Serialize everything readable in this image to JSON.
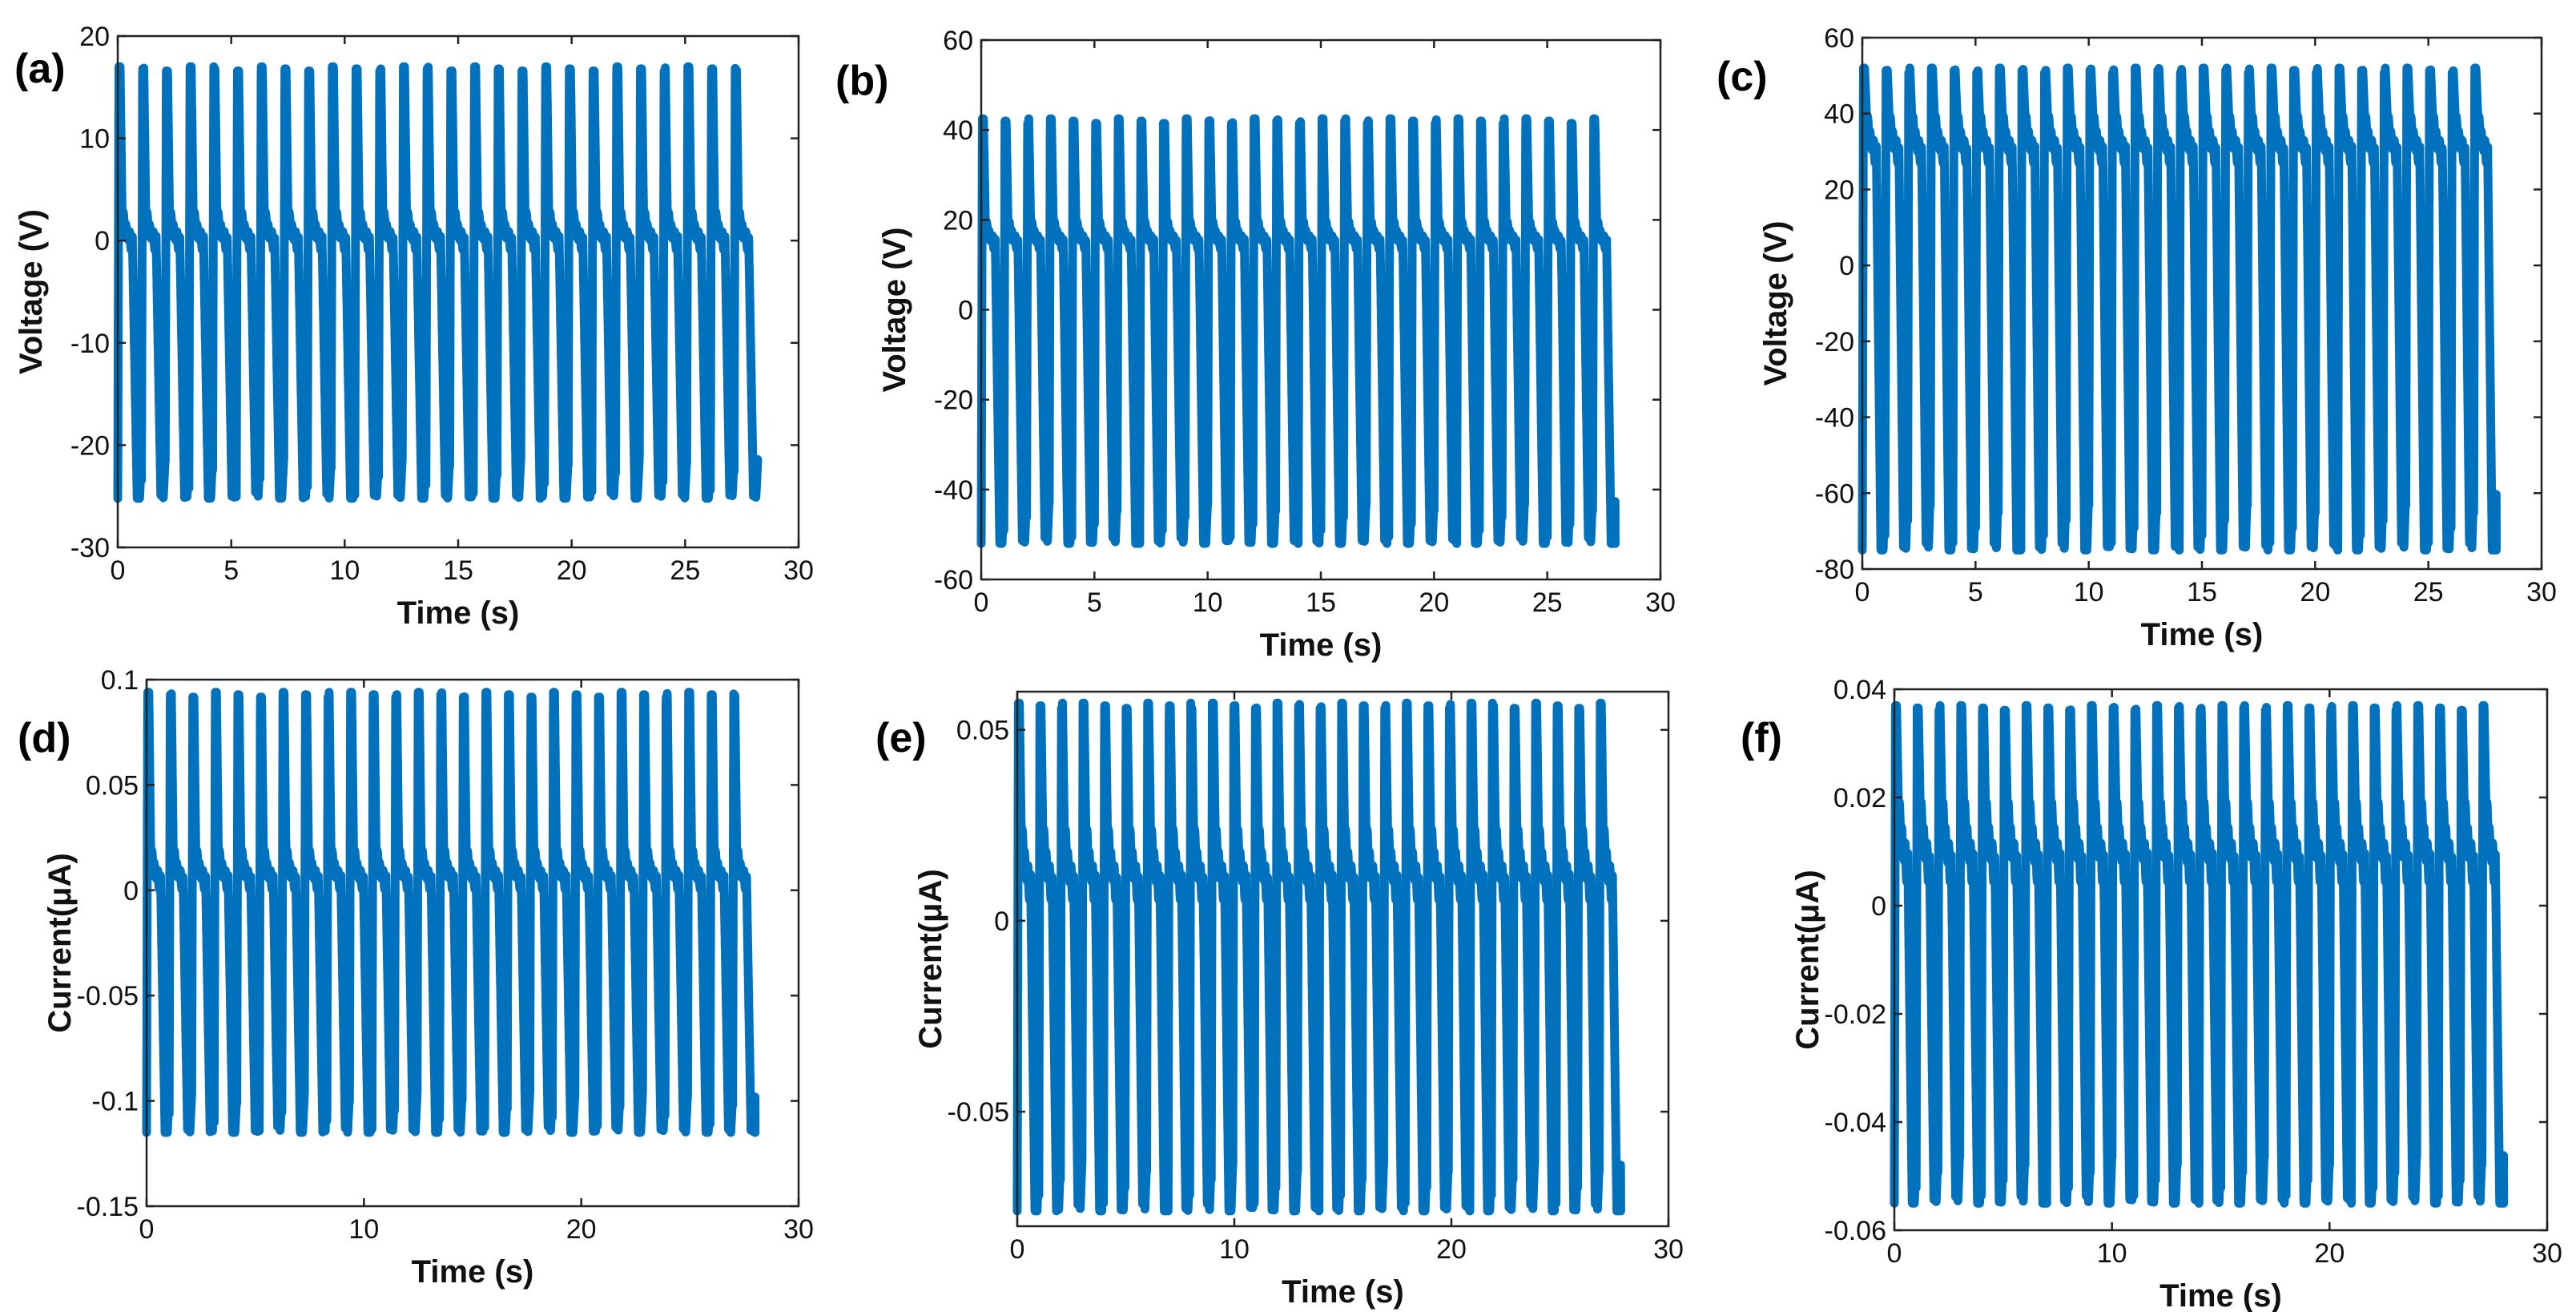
{
  "colors": {
    "series": "#0072BD",
    "axis": "#222222",
    "background": "#ffffff"
  },
  "chart_data": [
    {
      "type": "line",
      "panel": "(a)",
      "xlabel": "Time (s)",
      "ylabel": "Voltage (V)",
      "xlim": [
        0,
        30
      ],
      "ylim": [
        -30,
        20
      ],
      "xticks": [
        0,
        5,
        10,
        15,
        20,
        25,
        30
      ],
      "xtick_labels": [
        "0",
        "5",
        "10",
        "15",
        "20",
        "25",
        "30"
      ],
      "yticks": [
        -30,
        -20,
        -10,
        0,
        10,
        20
      ],
      "ytick_labels": [
        "-30",
        "-20",
        "-10",
        "0",
        "10",
        "20"
      ],
      "signal": {
        "t_start": 0.0,
        "t_end": 28.2,
        "cycles": 27,
        "peak_max": 17,
        "shoulder": 3,
        "baseline": 0,
        "trough_min": -25.2
      },
      "series": [
        {
          "name": "Voltage",
          "color": "#0072BD"
        }
      ]
    },
    {
      "type": "line",
      "panel": "(b)",
      "xlabel": "Time (s)",
      "ylabel": "Voltage (V)",
      "xlim": [
        0,
        30
      ],
      "ylim": [
        -60,
        60
      ],
      "xticks": [
        0,
        5,
        10,
        15,
        20,
        25,
        30
      ],
      "xtick_labels": [
        "0",
        "5",
        "10",
        "15",
        "20",
        "25",
        "30"
      ],
      "yticks": [
        -60,
        -40,
        -20,
        0,
        20,
        40,
        60
      ],
      "ytick_labels": [
        "-60",
        "-40",
        "-20",
        "0",
        "20",
        "40",
        "60"
      ],
      "signal": {
        "t_start": 0.0,
        "t_end": 28.0,
        "cycles": 28,
        "peak_max": 42.5,
        "shoulder": 20,
        "baseline": 15,
        "trough_min": -52
      },
      "series": [
        {
          "name": "Voltage",
          "color": "#0072BD"
        }
      ]
    },
    {
      "type": "line",
      "panel": "(c)",
      "xlabel": "Time (s)",
      "ylabel": "Voltage (V)",
      "xlim": [
        0,
        30
      ],
      "ylim": [
        -80,
        60
      ],
      "xticks": [
        0,
        5,
        10,
        15,
        20,
        25,
        30
      ],
      "xtick_labels": [
        "0",
        "5",
        "10",
        "15",
        "20",
        "25",
        "30"
      ],
      "yticks": [
        -80,
        -60,
        -40,
        -20,
        0,
        20,
        40,
        60
      ],
      "ytick_labels": [
        "-80",
        "-60",
        "-40",
        "-20",
        "0",
        "20",
        "40",
        "60"
      ],
      "signal": {
        "t_start": 0.0,
        "t_end": 28.0,
        "cycles": 28,
        "peak_max": 52,
        "shoulder": 40,
        "baseline": 30,
        "trough_min": -75
      },
      "series": [
        {
          "name": "Voltage",
          "color": "#0072BD"
        }
      ]
    },
    {
      "type": "line",
      "panel": "(d)",
      "xlabel": "Time (s)",
      "ylabel": "Current(μA)",
      "xlim": [
        0,
        30
      ],
      "ylim": [
        -0.15,
        0.1
      ],
      "xticks": [
        0,
        10,
        20,
        30
      ],
      "xtick_labels": [
        "0",
        "10",
        "20",
        "30"
      ],
      "yticks": [
        -0.15,
        -0.1,
        -0.05,
        0,
        0.05,
        0.1
      ],
      "ytick_labels": [
        "-0.15",
        "-0.1",
        "-0.05",
        "0",
        "0.05",
        "0.1"
      ],
      "signal": {
        "t_start": 0.0,
        "t_end": 28.0,
        "cycles": 27,
        "peak_max": 0.094,
        "shoulder": 0.02,
        "baseline": 0.005,
        "trough_min": -0.115
      },
      "series": [
        {
          "name": "Current",
          "color": "#0072BD"
        }
      ]
    },
    {
      "type": "line",
      "panel": "(e)",
      "xlabel": "Time (s)",
      "ylabel": "Current(μA)",
      "xlim": [
        0,
        30
      ],
      "ylim": [
        -0.08,
        0.06
      ],
      "xticks": [
        0,
        10,
        20,
        30
      ],
      "xtick_labels": [
        "0",
        "10",
        "20",
        "30"
      ],
      "yticks": [
        -0.05,
        0,
        0.05
      ],
      "ytick_labels": [
        "-0.05",
        "0",
        "0.05"
      ],
      "signal": {
        "t_start": 0.0,
        "t_end": 27.8,
        "cycles": 28,
        "peak_max": 0.057,
        "shoulder": 0.025,
        "baseline": 0.01,
        "trough_min": -0.076
      },
      "series": [
        {
          "name": "Current",
          "color": "#0072BD"
        }
      ]
    },
    {
      "type": "line",
      "panel": "(f)",
      "xlabel": "Time (s)",
      "ylabel": "Current(μA)",
      "xlim": [
        0,
        30
      ],
      "ylim": [
        -0.06,
        0.04
      ],
      "xticks": [
        0,
        10,
        20,
        30
      ],
      "xtick_labels": [
        "0",
        "10",
        "20",
        "30"
      ],
      "yticks": [
        -0.06,
        -0.04,
        -0.02,
        0,
        0.02,
        0.04
      ],
      "ytick_labels": [
        "-0.06",
        "-0.04",
        "-0.02",
        "0",
        "0.02",
        "0.04"
      ],
      "signal": {
        "t_start": 0.0,
        "t_end": 28.0,
        "cycles": 28,
        "peak_max": 0.037,
        "shoulder": 0.02,
        "baseline": 0.008,
        "trough_min": -0.055
      },
      "series": [
        {
          "name": "Current",
          "color": "#0072BD"
        }
      ]
    }
  ]
}
